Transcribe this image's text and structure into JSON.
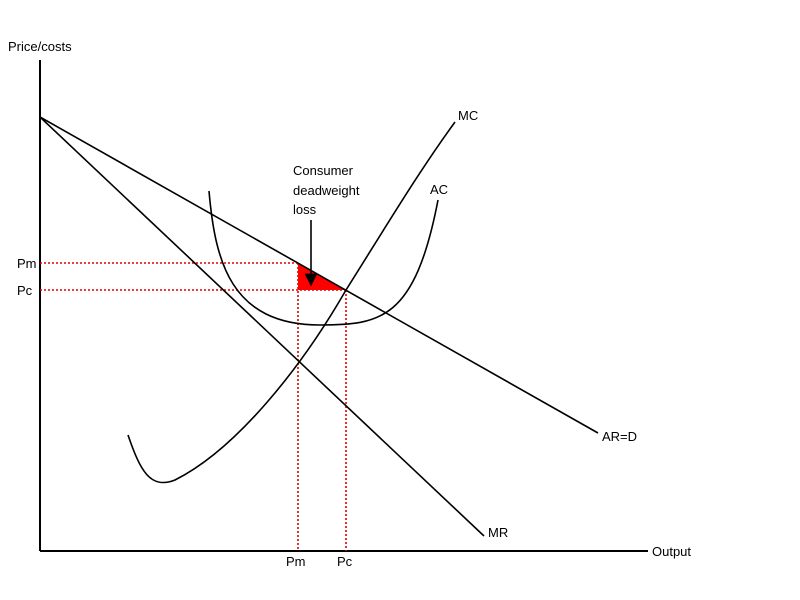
{
  "axes": {
    "y_label": "Price/costs",
    "x_label": "Output"
  },
  "curves": {
    "mc_label": "MC",
    "ac_label": "AC",
    "ar_label": "AR=D",
    "mr_label": "MR"
  },
  "price_labels": {
    "pm": "Pm",
    "pc": "Pc"
  },
  "output_labels": {
    "pm": "Pm",
    "pc": "Pc"
  },
  "annotation": {
    "line1": "Consumer",
    "line2": "deadweight",
    "line3": "loss"
  },
  "colors": {
    "deadweight_fill": "#ff0000",
    "guide_lines": "#e00000",
    "curves": "#000000"
  }
}
